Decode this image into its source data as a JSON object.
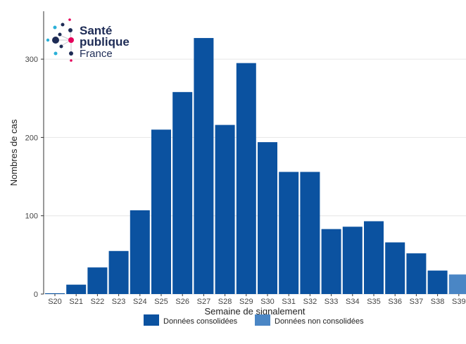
{
  "logo": {
    "line1": "Santé",
    "line2": "publique",
    "line3": "France"
  },
  "chart_data": {
    "type": "bar",
    "xlabel": "Semaine de signalement",
    "ylabel": "Nombres de cas",
    "ylim": [
      0,
      350
    ],
    "yticks": [
      0,
      100,
      200,
      300
    ],
    "grid": true,
    "legend_position": "bottom",
    "categories": [
      "S20",
      "S21",
      "S22",
      "S23",
      "S24",
      "S25",
      "S26",
      "S27",
      "S28",
      "S29",
      "S30",
      "S31",
      "S32",
      "S33",
      "S34",
      "S35",
      "S36",
      "S37",
      "S38",
      "S39"
    ],
    "values": [
      1,
      12,
      34,
      55,
      107,
      210,
      258,
      327,
      216,
      295,
      194,
      156,
      156,
      83,
      86,
      93,
      66,
      52,
      30,
      25
    ],
    "status": [
      "c",
      "c",
      "c",
      "c",
      "c",
      "c",
      "c",
      "c",
      "c",
      "c",
      "c",
      "c",
      "c",
      "c",
      "c",
      "c",
      "c",
      "c",
      "c",
      "n"
    ],
    "series": [
      {
        "name": "Données consolidées",
        "key": "c",
        "color": "#0b52a0"
      },
      {
        "name": "Données non consolidées",
        "key": "n",
        "color": "#4a86c5"
      }
    ]
  }
}
